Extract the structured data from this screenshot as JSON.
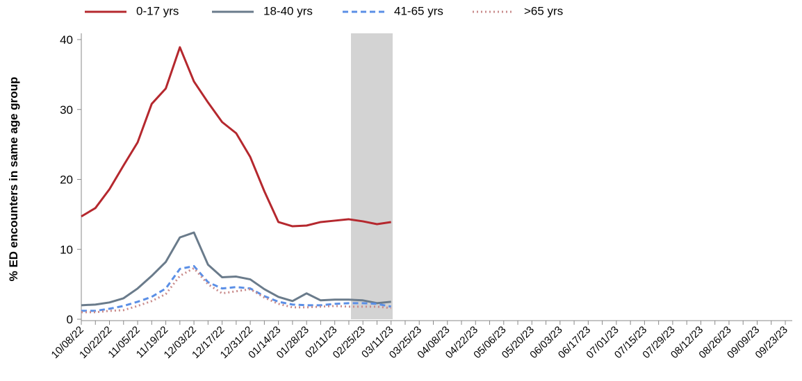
{
  "chart_data": {
    "type": "line",
    "y_label": "% ED encounters in same age group",
    "categories": [
      "10/08/22",
      null,
      "10/22/22",
      null,
      "11/05/22",
      null,
      "11/19/22",
      null,
      "12/03/22",
      null,
      "12/17/22",
      null,
      "12/31/22",
      null,
      "01/14/23",
      null,
      "01/28/23",
      null,
      "02/11/23",
      null,
      "02/25/23",
      null,
      "03/11/23",
      null,
      "03/25/23",
      null,
      "04/08/23",
      null,
      "04/22/23",
      null,
      "05/06/23",
      null,
      "05/20/23",
      null,
      "06/03/23",
      null,
      "06/17/23",
      null,
      "07/01/23",
      null,
      "07/15/23",
      null,
      "07/29/23",
      null,
      "08/12/23",
      null,
      "08/26/23",
      null,
      "09/09/23",
      null,
      "09/23/23"
    ],
    "series": [
      {
        "name": "0-17 yrs",
        "color": "#b5282e",
        "line_style": "solid",
        "values": [
          14.7,
          15.9,
          18.6,
          22.0,
          25.3,
          30.8,
          33.0,
          38.9,
          34.0,
          31.0,
          28.2,
          26.6,
          23.2,
          18.3,
          13.9,
          13.3,
          13.4,
          13.9,
          14.1,
          14.3,
          14.0,
          13.6,
          13.9,
          null,
          null,
          null,
          null,
          null,
          null,
          null,
          null,
          null,
          null,
          null,
          null,
          null,
          null,
          null,
          null,
          null,
          null,
          null,
          null,
          null,
          null,
          null,
          null,
          null,
          null,
          null,
          null
        ]
      },
      {
        "name": "18-40 yrs",
        "color": "#6a7b8b",
        "line_style": "solid",
        "values": [
          2.0,
          2.1,
          2.4,
          3.0,
          4.4,
          6.2,
          8.2,
          11.7,
          12.4,
          7.8,
          6.0,
          6.1,
          5.7,
          4.3,
          3.2,
          2.6,
          3.7,
          2.7,
          2.8,
          2.8,
          2.7,
          2.3,
          2.5,
          null,
          null,
          null,
          null,
          null,
          null,
          null,
          null,
          null,
          null,
          null,
          null,
          null,
          null,
          null,
          null,
          null,
          null,
          null,
          null,
          null,
          null,
          null,
          null,
          null,
          null,
          null,
          null
        ]
      },
      {
        "name": "41-65 yrs",
        "color": "#5b8fe6",
        "line_style": "dashed",
        "values": [
          1.2,
          1.2,
          1.5,
          1.9,
          2.5,
          3.2,
          4.4,
          7.2,
          7.6,
          5.3,
          4.4,
          4.6,
          4.4,
          3.3,
          2.5,
          2.1,
          2.0,
          2.0,
          2.2,
          2.3,
          2.3,
          2.2,
          1.8,
          null,
          null,
          null,
          null,
          null,
          null,
          null,
          null,
          null,
          null,
          null,
          null,
          null,
          null,
          null,
          null,
          null,
          null,
          null,
          null,
          null,
          null,
          null,
          null,
          null,
          null,
          null,
          null
        ]
      },
      {
        "name": ">65 yrs",
        "color": "#c98b8b",
        "line_style": "dotted",
        "values": [
          1.0,
          1.0,
          1.2,
          1.3,
          1.9,
          2.6,
          3.6,
          6.2,
          7.3,
          5.0,
          3.7,
          4.0,
          4.3,
          3.1,
          2.2,
          1.7,
          1.7,
          1.8,
          1.9,
          1.8,
          1.8,
          1.8,
          1.6,
          null,
          null,
          null,
          null,
          null,
          null,
          null,
          null,
          null,
          null,
          null,
          null,
          null,
          null,
          null,
          null,
          null,
          null,
          null,
          null,
          null,
          null,
          null,
          null,
          null,
          null,
          null,
          null
        ]
      }
    ],
    "ylim": [
      0,
      40
    ],
    "yticks": [
      0,
      10,
      20,
      30,
      40
    ],
    "legend": "top"
  }
}
